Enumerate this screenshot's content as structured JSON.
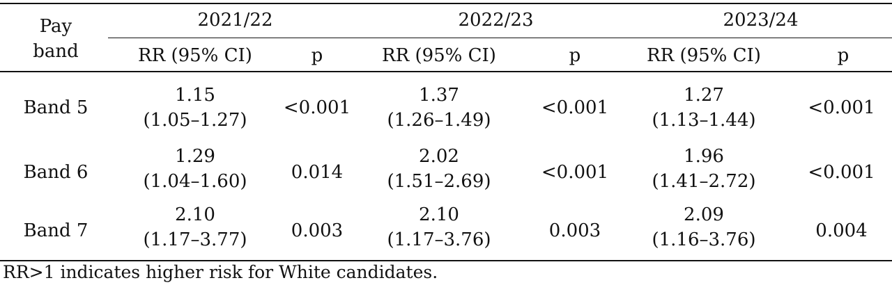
{
  "table": {
    "header": {
      "pay_band": {
        "line1": "Pay",
        "line2": "band"
      },
      "years": [
        "2021/22",
        "2022/23",
        "2023/24"
      ],
      "sub": {
        "rr": "RR (95% CI)",
        "p": "p"
      }
    },
    "rows": [
      {
        "band": "Band 5",
        "cells": [
          {
            "rr": "1.15",
            "ci": "(1.05–1.27)",
            "p": "<0.001"
          },
          {
            "rr": "1.37",
            "ci": "(1.26–1.49)",
            "p": "<0.001"
          },
          {
            "rr": "1.27",
            "ci": "(1.13–1.44)",
            "p": "<0.001"
          }
        ]
      },
      {
        "band": "Band 6",
        "cells": [
          {
            "rr": "1.29",
            "ci": "(1.04–1.60)",
            "p": "0.014"
          },
          {
            "rr": "2.02",
            "ci": "(1.51–2.69)",
            "p": "<0.001"
          },
          {
            "rr": "1.96",
            "ci": "(1.41–2.72)",
            "p": "<0.001"
          }
        ]
      },
      {
        "band": "Band 7",
        "cells": [
          {
            "rr": "2.10",
            "ci": "(1.17–3.77)",
            "p": "0.003"
          },
          {
            "rr": "2.10",
            "ci": "(1.17–3.76)",
            "p": "0.003"
          },
          {
            "rr": "2.09",
            "ci": "(1.16–3.76)",
            "p": "0.004"
          }
        ]
      }
    ],
    "footnote": "RR>1 indicates higher risk for White candidates."
  }
}
